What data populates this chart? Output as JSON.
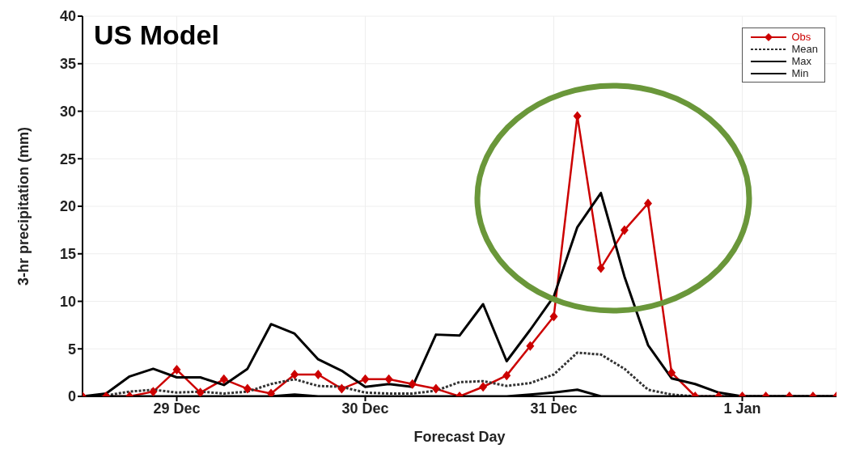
{
  "chart_data": {
    "type": "line",
    "title": "US Model",
    "xlabel": "Forecast Day",
    "ylabel": "3-hr precipitation  (mm)",
    "categories": [
      null,
      null,
      null,
      null,
      "29 Dec",
      null,
      null,
      null,
      null,
      null,
      null,
      null,
      "30 Dec",
      null,
      null,
      null,
      null,
      null,
      null,
      null,
      "31 Dec",
      null,
      null,
      null,
      null,
      null,
      null,
      null,
      "1 Jan",
      null,
      null,
      null,
      null
    ],
    "ylim": [
      0,
      40
    ],
    "yticks": [
      0,
      5,
      10,
      15,
      20,
      25,
      30,
      35,
      40
    ],
    "grid": true,
    "legend": "top right",
    "series": [
      {
        "name": "Obs",
        "color": "#cc0000",
        "marker": "diamond",
        "line_style": "solid",
        "values": [
          0,
          0,
          0,
          0.5,
          2.8,
          0.4,
          1.8,
          0.8,
          0.3,
          2.3,
          2.3,
          0.8,
          1.8,
          1.8,
          1.3,
          0.8,
          0,
          1.0,
          2.2,
          5.3,
          8.4,
          29.5,
          13.5,
          17.5,
          20.3,
          2.5,
          0,
          0,
          0,
          0,
          0,
          0,
          0
        ]
      },
      {
        "name": "Mean",
        "color": "#333333",
        "marker": "none",
        "line_style": "dotted",
        "values": [
          0,
          0.1,
          0.5,
          0.7,
          0.4,
          0.5,
          0.3,
          0.5,
          1.3,
          1.8,
          1.1,
          1.0,
          0.4,
          0.3,
          0.3,
          0.6,
          1.5,
          1.6,
          1.1,
          1.4,
          2.3,
          4.6,
          4.4,
          2.9,
          0.7,
          0.2,
          0,
          0,
          0,
          0,
          0,
          0,
          0
        ]
      },
      {
        "name": "Max",
        "color": "#000000",
        "marker": "none",
        "line_style": "solid",
        "values": [
          0,
          0.3,
          2.1,
          2.9,
          2.0,
          2.0,
          1.2,
          2.9,
          7.6,
          6.6,
          3.9,
          2.7,
          1.0,
          1.3,
          1.0,
          6.5,
          6.4,
          9.7,
          3.7,
          7.0,
          10.5,
          17.8,
          21.4,
          12.6,
          5.4,
          1.9,
          1.3,
          0.4,
          0,
          0,
          0,
          0,
          0
        ]
      },
      {
        "name": "Min",
        "color": "#000000",
        "marker": "none",
        "line_style": "solid",
        "values": [
          0,
          0,
          0,
          0,
          0,
          0,
          0,
          0,
          0,
          0.2,
          0,
          0,
          0,
          0,
          0,
          0,
          0,
          0,
          0,
          0.2,
          0.4,
          0.7,
          0,
          0,
          0,
          0,
          0,
          0,
          0,
          0,
          0,
          0,
          0
        ]
      }
    ]
  }
}
